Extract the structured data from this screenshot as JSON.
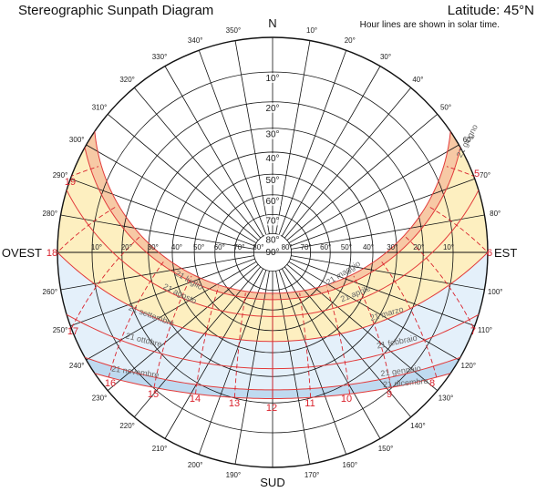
{
  "header": {
    "title": "Stereographic Sunpath Diagram",
    "latitude": "Latitude: 45°N",
    "note": "Hour lines are shown in solar time."
  },
  "diagram": {
    "projection": "stereographic",
    "latitude_deg": 45,
    "altitude_labels": [
      "10°",
      "20°",
      "30°",
      "40°",
      "50°",
      "60°",
      "70°",
      "80°",
      "90°"
    ],
    "lateral_altitude_labels": [
      "10°",
      "20°",
      "30°",
      "40°",
      "50°",
      "60°",
      "70°",
      "80°",
      "90°"
    ],
    "azimuth_labels": [
      "10°",
      "20°",
      "30°",
      "40°",
      "50°",
      "60°",
      "70°",
      "80°",
      "100°",
      "110°",
      "120°",
      "130°",
      "140°",
      "150°",
      "160°",
      "170°",
      "190°",
      "200°",
      "210°",
      "220°",
      "230°",
      "240°",
      "250°",
      "260°",
      "280°",
      "290°",
      "300°",
      "310°",
      "320°",
      "330°",
      "340°",
      "350°"
    ],
    "cardinals": {
      "n": "N",
      "e": "EST",
      "s": "SUD",
      "w": "OVEST"
    },
    "date_labels": [
      "21 giugno",
      "21 maggio",
      "21 aprile",
      "21 marzo",
      "21 febbraio",
      "21 gennaio",
      "21 dicembre",
      "21 luglio",
      "21 agosto",
      "21 settembre",
      "21 ottobre",
      "21 novembre"
    ],
    "hour_labels": [
      "5",
      "6",
      "7",
      "8",
      "9",
      "10",
      "11",
      "12",
      "13",
      "14",
      "15",
      "16",
      "17",
      "18",
      "19"
    ],
    "colors": {
      "summer_band": "#f7c9a5",
      "summer_inner": "#fdefc0",
      "winter_band": "#bfdaf0",
      "winter_inner": "#e4f0fa",
      "sun_path": "#e23b3b",
      "hour_line": "#d9232d",
      "grid": "#111111"
    }
  }
}
